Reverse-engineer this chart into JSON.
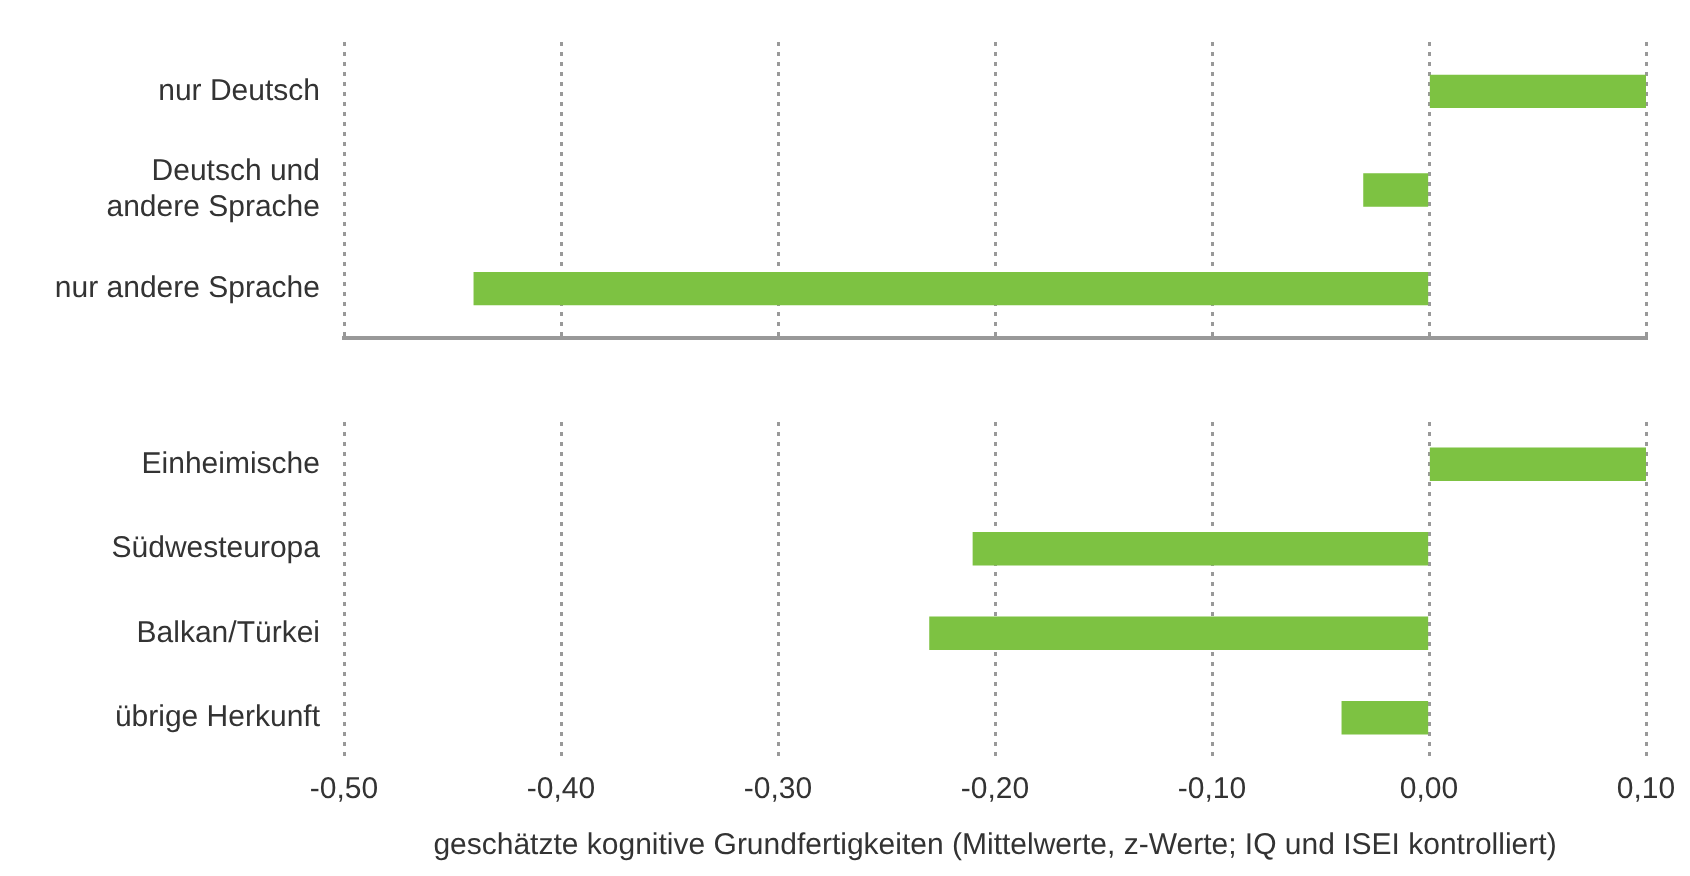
{
  "chart_data": [
    {
      "type": "bar",
      "orientation": "horizontal",
      "categories": [
        "nur Deutsch",
        "Deutsch und\nandere Sprache",
        "nur andere Sprache"
      ],
      "values": [
        0.1,
        -0.03,
        -0.44
      ],
      "color": "#7dc242",
      "xlim": [
        -0.5,
        0.1
      ],
      "xticks": [
        {
          "value": -0.5,
          "label": null
        },
        {
          "value": -0.4,
          "label": null
        },
        {
          "value": -0.3,
          "label": null
        },
        {
          "value": -0.2,
          "label": null
        },
        {
          "value": -0.1,
          "label": null
        },
        {
          "value": 0,
          "label": null
        },
        {
          "value": 0.1,
          "label": null
        }
      ],
      "tick_labels": "y",
      "grid": "x",
      "legend": false
    },
    {
      "type": "bar",
      "orientation": "horizontal",
      "xlabel": "geschätzte kognitive Grundfertigkeiten (Mittelwerte, z-Werte; IQ und ISEI kontrolliert)",
      "categories": [
        "Einheimische",
        "Südwesteuropa",
        "Balkan/Türkei",
        "übrige Herkunft"
      ],
      "values": [
        0.1,
        -0.21,
        -0.23,
        -0.04
      ],
      "color": "#7dc242",
      "xlim": [
        -0.5,
        0.1
      ],
      "xticks": [
        {
          "value": -0.5,
          "label": "-0,50"
        },
        {
          "value": -0.4,
          "label": "-0,40"
        },
        {
          "value": -0.3,
          "label": "-0,30"
        },
        {
          "value": -0.2,
          "label": "-0,20"
        },
        {
          "value": -0.1,
          "label": "-0,10"
        },
        {
          "value": 0,
          "label": "0,00"
        },
        {
          "value": 0.1,
          "label": "0,10"
        }
      ],
      "grid": "x",
      "legend": false
    }
  ]
}
